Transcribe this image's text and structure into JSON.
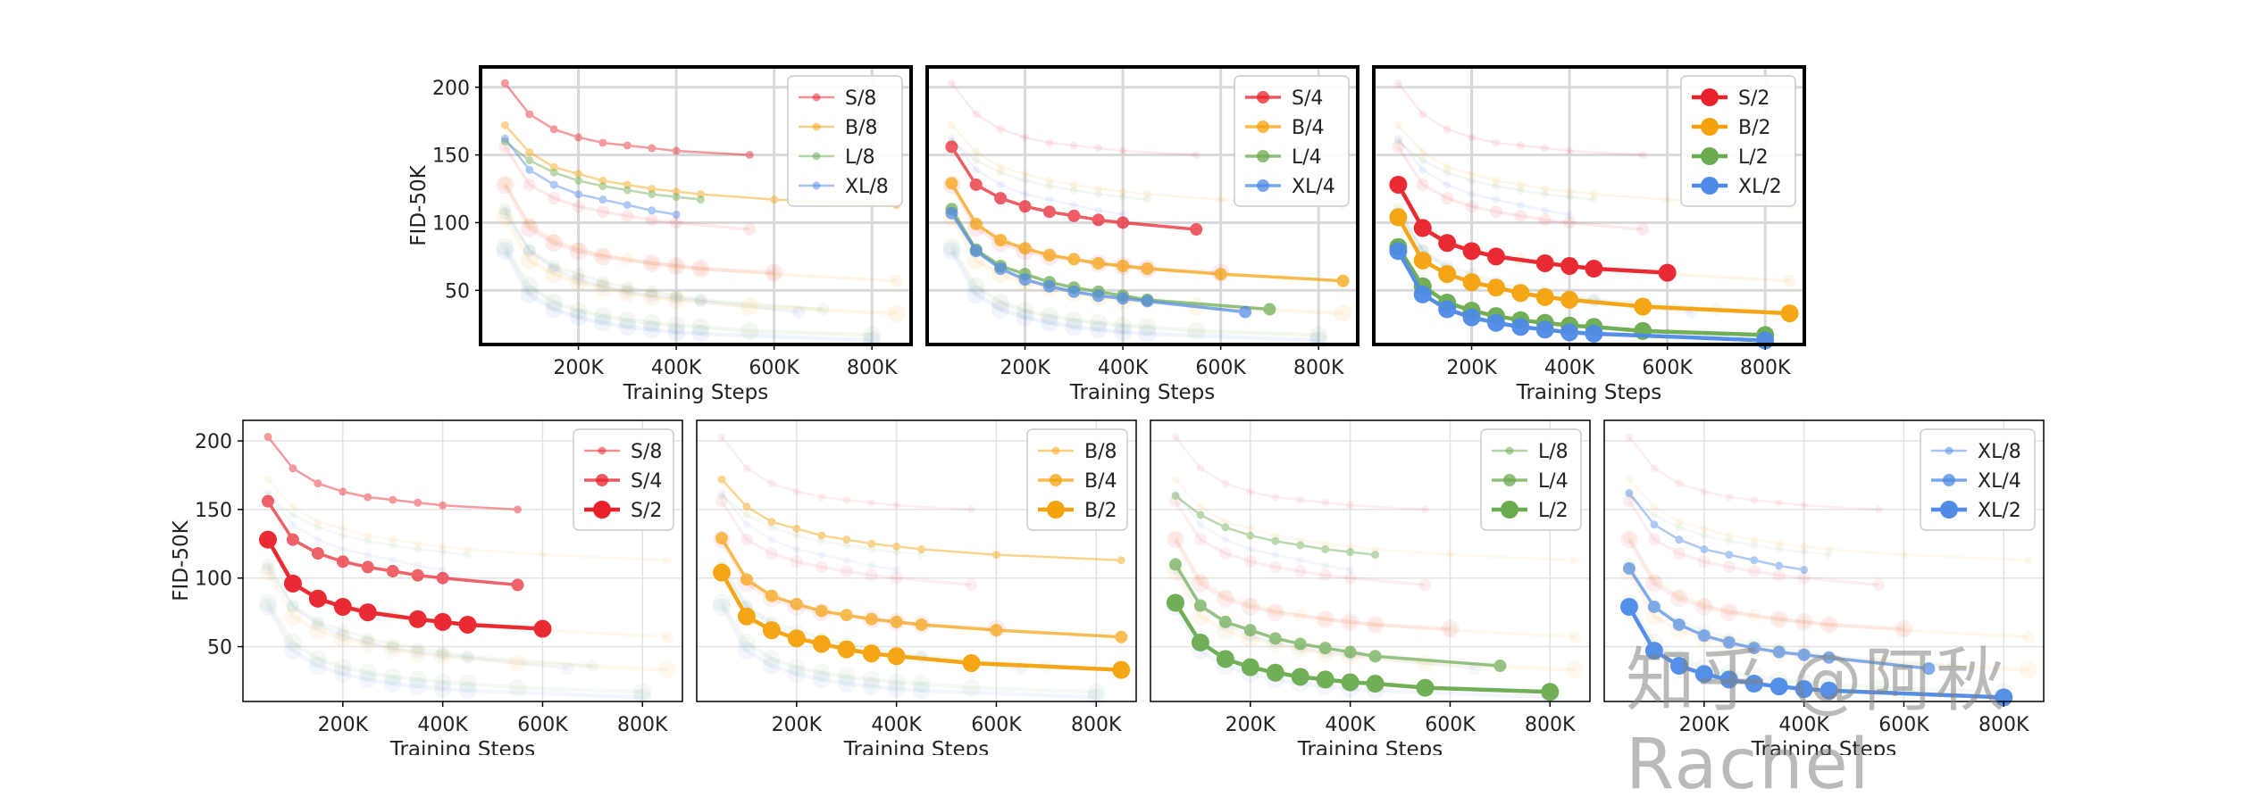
{
  "watermark": "知乎 @阿秋Rachel",
  "colors": {
    "S": "#e8202a",
    "B": "#f5a20a",
    "L": "#6aab4f",
    "XL": "#4e8ae6"
  },
  "chart_data": [
    {
      "id": "top-1",
      "type": "line",
      "xlabel": "Training Steps",
      "ylabel": "FID-50K",
      "xlim": [
        0,
        880000
      ],
      "ylim": [
        10,
        215
      ],
      "xticks": [
        200000,
        400000,
        600000,
        800000
      ],
      "xtick_labels": [
        "200K",
        "400K",
        "600K",
        "800K"
      ],
      "yticks": [
        50,
        100,
        150,
        200
      ],
      "ytick_labels": [
        "50",
        "100",
        "150",
        "200"
      ],
      "legend": "top-right",
      "series": [
        {
          "name": "S/8",
          "family": "S",
          "patch": 8,
          "x": [
            50000,
            100000,
            150000,
            200000,
            250000,
            300000,
            350000,
            400000,
            550000
          ],
          "y": [
            203,
            180,
            169,
            163,
            159,
            157,
            155,
            153,
            150
          ]
        },
        {
          "name": "B/8",
          "family": "B",
          "patch": 8,
          "x": [
            50000,
            100000,
            150000,
            200000,
            250000,
            300000,
            350000,
            400000,
            450000,
            600000,
            850000
          ],
          "y": [
            172,
            152,
            141,
            136,
            131,
            128,
            125,
            123,
            121,
            117,
            113
          ]
        },
        {
          "name": "L/8",
          "family": "L",
          "patch": 8,
          "x": [
            50000,
            100000,
            150000,
            200000,
            250000,
            300000,
            350000,
            400000,
            450000
          ],
          "y": [
            160,
            146,
            137,
            131,
            127,
            124,
            121,
            119,
            117
          ]
        },
        {
          "name": "XL/8",
          "family": "XL",
          "patch": 8,
          "x": [
            50000,
            100000,
            150000,
            200000,
            250000,
            300000,
            350000,
            400000
          ],
          "y": [
            162,
            139,
            128,
            121,
            117,
            113,
            109,
            106
          ]
        }
      ]
    },
    {
      "id": "top-2",
      "type": "line",
      "xlabel": "Training Steps",
      "ylabel": "",
      "xlim": [
        0,
        880000
      ],
      "ylim": [
        10,
        215
      ],
      "xticks": [
        200000,
        400000,
        600000,
        800000
      ],
      "xtick_labels": [
        "200K",
        "400K",
        "600K",
        "800K"
      ],
      "yticks": [
        50,
        100,
        150,
        200
      ],
      "ytick_labels": [],
      "legend": "top-right",
      "series": [
        {
          "name": "S/4",
          "family": "S",
          "patch": 4,
          "x": [
            50000,
            100000,
            150000,
            200000,
            250000,
            300000,
            350000,
            400000,
            550000
          ],
          "y": [
            156,
            128,
            118,
            112,
            108,
            105,
            102,
            100,
            95
          ]
        },
        {
          "name": "B/4",
          "family": "B",
          "patch": 4,
          "x": [
            50000,
            100000,
            150000,
            200000,
            250000,
            300000,
            350000,
            400000,
            450000,
            600000,
            850000
          ],
          "y": [
            129,
            99,
            87,
            81,
            76,
            73,
            70,
            68,
            66,
            62,
            57
          ]
        },
        {
          "name": "L/4",
          "family": "L",
          "patch": 4,
          "x": [
            50000,
            100000,
            150000,
            200000,
            250000,
            300000,
            350000,
            400000,
            450000,
            700000
          ],
          "y": [
            110,
            80,
            68,
            62,
            56,
            52,
            49,
            46,
            43,
            36
          ]
        },
        {
          "name": "XL/4",
          "family": "XL",
          "patch": 4,
          "x": [
            50000,
            100000,
            150000,
            200000,
            250000,
            300000,
            350000,
            400000,
            450000,
            650000
          ],
          "y": [
            107,
            79,
            66,
            58,
            53,
            49,
            46,
            44,
            42,
            34
          ]
        }
      ]
    },
    {
      "id": "top-3",
      "type": "line",
      "xlabel": "Training Steps",
      "ylabel": "",
      "xlim": [
        0,
        880000
      ],
      "ylim": [
        10,
        215
      ],
      "xticks": [
        200000,
        400000,
        600000,
        800000
      ],
      "xtick_labels": [
        "200K",
        "400K",
        "600K",
        "800K"
      ],
      "yticks": [
        50,
        100,
        150,
        200
      ],
      "ytick_labels": [],
      "legend": "top-right",
      "series": [
        {
          "name": "S/2",
          "family": "S",
          "patch": 2,
          "x": [
            50000,
            100000,
            150000,
            200000,
            250000,
            350000,
            400000,
            450000,
            600000
          ],
          "y": [
            128,
            96,
            85,
            79,
            75,
            70,
            68,
            66,
            63
          ]
        },
        {
          "name": "B/2",
          "family": "B",
          "patch": 2,
          "x": [
            50000,
            100000,
            150000,
            200000,
            250000,
            300000,
            350000,
            400000,
            550000,
            850000
          ],
          "y": [
            104,
            72,
            62,
            56,
            52,
            48,
            45,
            43,
            38,
            33
          ]
        },
        {
          "name": "L/2",
          "family": "L",
          "patch": 2,
          "x": [
            50000,
            100000,
            150000,
            200000,
            250000,
            300000,
            350000,
            400000,
            450000,
            550000,
            800000
          ],
          "y": [
            82,
            53,
            41,
            35,
            31,
            28,
            26,
            24,
            23,
            20,
            17
          ]
        },
        {
          "name": "XL/2",
          "family": "XL",
          "patch": 2,
          "x": [
            50000,
            100000,
            150000,
            200000,
            250000,
            300000,
            350000,
            400000,
            450000,
            800000
          ],
          "y": [
            79,
            47,
            36,
            30,
            26,
            23,
            21,
            19,
            18,
            13
          ]
        }
      ]
    },
    {
      "id": "bottom-S",
      "type": "line",
      "xlabel": "Training Steps",
      "ylabel": "FID-50K",
      "xlim": [
        0,
        880000
      ],
      "ylim": [
        10,
        215
      ],
      "xticks": [
        200000,
        400000,
        600000,
        800000
      ],
      "xtick_labels": [
        "200K",
        "400K",
        "600K",
        "800K"
      ],
      "yticks": [
        50,
        100,
        150,
        200
      ],
      "ytick_labels": [
        "50",
        "100",
        "150",
        "200"
      ],
      "legend": "top-right",
      "series": [
        {
          "name": "S/8",
          "family": "S",
          "patch": 8,
          "x": [
            50000,
            100000,
            150000,
            200000,
            250000,
            300000,
            350000,
            400000,
            550000
          ],
          "y": [
            203,
            180,
            169,
            163,
            159,
            157,
            155,
            153,
            150
          ]
        },
        {
          "name": "S/4",
          "family": "S",
          "patch": 4,
          "x": [
            50000,
            100000,
            150000,
            200000,
            250000,
            300000,
            350000,
            400000,
            550000
          ],
          "y": [
            156,
            128,
            118,
            112,
            108,
            105,
            102,
            100,
            95
          ]
        },
        {
          "name": "S/2",
          "family": "S",
          "patch": 2,
          "x": [
            50000,
            100000,
            150000,
            200000,
            250000,
            350000,
            400000,
            450000,
            600000
          ],
          "y": [
            128,
            96,
            85,
            79,
            75,
            70,
            68,
            66,
            63
          ]
        }
      ]
    },
    {
      "id": "bottom-B",
      "type": "line",
      "xlabel": "Training Steps",
      "ylabel": "",
      "xlim": [
        0,
        880000
      ],
      "ylim": [
        10,
        215
      ],
      "xticks": [
        200000,
        400000,
        600000,
        800000
      ],
      "xtick_labels": [
        "200K",
        "400K",
        "600K",
        "800K"
      ],
      "yticks": [
        50,
        100,
        150,
        200
      ],
      "ytick_labels": [],
      "legend": "top-right",
      "series": [
        {
          "name": "B/8",
          "family": "B",
          "patch": 8,
          "x": [
            50000,
            100000,
            150000,
            200000,
            250000,
            300000,
            350000,
            400000,
            450000,
            600000,
            850000
          ],
          "y": [
            172,
            152,
            141,
            136,
            131,
            128,
            125,
            123,
            121,
            117,
            113
          ]
        },
        {
          "name": "B/4",
          "family": "B",
          "patch": 4,
          "x": [
            50000,
            100000,
            150000,
            200000,
            250000,
            300000,
            350000,
            400000,
            450000,
            600000,
            850000
          ],
          "y": [
            129,
            99,
            87,
            81,
            76,
            73,
            70,
            68,
            66,
            62,
            57
          ]
        },
        {
          "name": "B/2",
          "family": "B",
          "patch": 2,
          "x": [
            50000,
            100000,
            150000,
            200000,
            250000,
            300000,
            350000,
            400000,
            550000,
            850000
          ],
          "y": [
            104,
            72,
            62,
            56,
            52,
            48,
            45,
            43,
            38,
            33
          ]
        }
      ]
    },
    {
      "id": "bottom-L",
      "type": "line",
      "xlabel": "Training Steps",
      "ylabel": "",
      "xlim": [
        0,
        880000
      ],
      "ylim": [
        10,
        215
      ],
      "xticks": [
        200000,
        400000,
        600000,
        800000
      ],
      "xtick_labels": [
        "200K",
        "400K",
        "600K",
        "800K"
      ],
      "yticks": [
        50,
        100,
        150,
        200
      ],
      "ytick_labels": [],
      "legend": "top-right",
      "series": [
        {
          "name": "L/8",
          "family": "L",
          "patch": 8,
          "x": [
            50000,
            100000,
            150000,
            200000,
            250000,
            300000,
            350000,
            400000,
            450000
          ],
          "y": [
            160,
            146,
            137,
            131,
            127,
            124,
            121,
            119,
            117
          ]
        },
        {
          "name": "L/4",
          "family": "L",
          "patch": 4,
          "x": [
            50000,
            100000,
            150000,
            200000,
            250000,
            300000,
            350000,
            400000,
            450000,
            700000
          ],
          "y": [
            110,
            80,
            68,
            62,
            56,
            52,
            49,
            46,
            43,
            36
          ]
        },
        {
          "name": "L/2",
          "family": "L",
          "patch": 2,
          "x": [
            50000,
            100000,
            150000,
            200000,
            250000,
            300000,
            350000,
            400000,
            450000,
            550000,
            800000
          ],
          "y": [
            82,
            53,
            41,
            35,
            31,
            28,
            26,
            24,
            23,
            20,
            17
          ]
        }
      ]
    },
    {
      "id": "bottom-XL",
      "type": "line",
      "xlabel": "Training Steps",
      "ylabel": "",
      "xlim": [
        0,
        880000
      ],
      "ylim": [
        10,
        215
      ],
      "xticks": [
        200000,
        400000,
        600000,
        800000
      ],
      "xtick_labels": [
        "200K",
        "400K",
        "600K",
        "800K"
      ],
      "yticks": [
        50,
        100,
        150,
        200
      ],
      "ytick_labels": [],
      "legend": "top-right",
      "series": [
        {
          "name": "XL/8",
          "family": "XL",
          "patch": 8,
          "x": [
            50000,
            100000,
            150000,
            200000,
            250000,
            300000,
            350000,
            400000
          ],
          "y": [
            162,
            139,
            128,
            121,
            117,
            113,
            109,
            106
          ]
        },
        {
          "name": "XL/4",
          "family": "XL",
          "patch": 4,
          "x": [
            50000,
            100000,
            150000,
            200000,
            250000,
            300000,
            350000,
            400000,
            450000,
            650000
          ],
          "y": [
            107,
            79,
            66,
            58,
            53,
            49,
            46,
            44,
            42,
            34
          ]
        },
        {
          "name": "XL/2",
          "family": "XL",
          "patch": 2,
          "x": [
            50000,
            100000,
            150000,
            200000,
            250000,
            300000,
            350000,
            400000,
            450000,
            800000
          ],
          "y": [
            79,
            47,
            36,
            30,
            26,
            23,
            21,
            19,
            18,
            13
          ]
        }
      ]
    }
  ]
}
